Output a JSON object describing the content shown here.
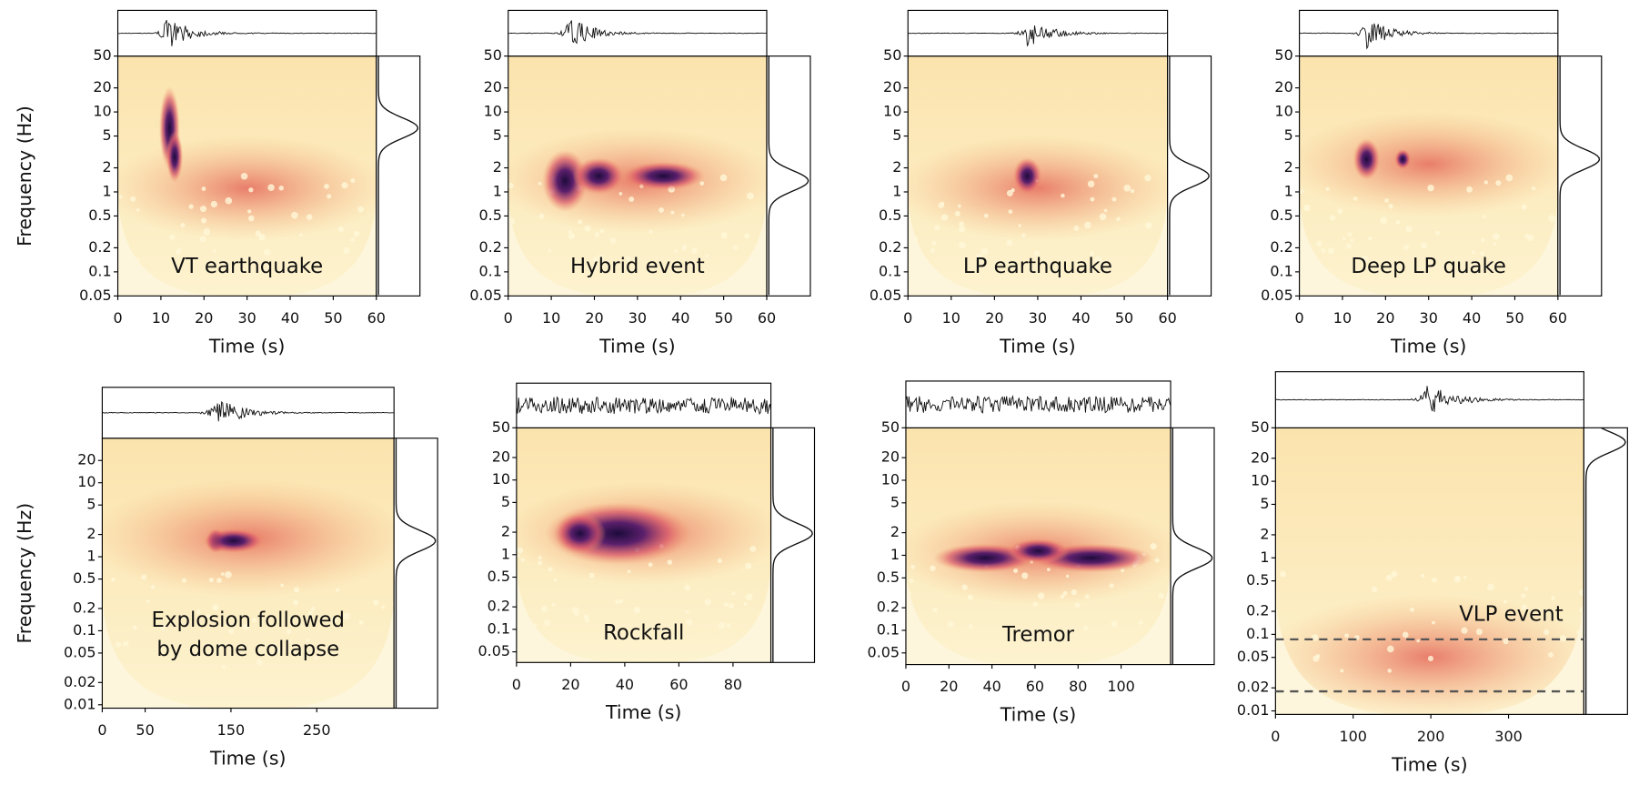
{
  "chart_data": [
    {
      "type": "spectrogram",
      "annotation": [
        "VT earthquake"
      ],
      "y_label": "Frequency (Hz)",
      "x_label": "Time (s)",
      "log_y": true,
      "xlim": [
        0,
        60
      ],
      "xticks": [
        0,
        10,
        20,
        30,
        40,
        50,
        60
      ],
      "ylim": [
        0.05,
        50
      ],
      "yticks": [
        50,
        20,
        10,
        5,
        2,
        1,
        0.5,
        0.2,
        0.1,
        0.05
      ]
    },
    {
      "type": "spectrogram",
      "annotation": [
        "Hybrid event"
      ],
      "x_label": "Time (s)",
      "log_y": true,
      "xlim": [
        0,
        60
      ],
      "xticks": [
        0,
        10,
        20,
        30,
        40,
        50,
        60
      ],
      "ylim": [
        0.05,
        50
      ],
      "yticks": [
        50,
        20,
        10,
        5,
        2,
        1,
        0.5,
        0.2,
        0.1,
        0.05
      ]
    },
    {
      "type": "spectrogram",
      "annotation": [
        "LP earthquake"
      ],
      "x_label": "Time (s)",
      "log_y": true,
      "xlim": [
        0,
        60
      ],
      "xticks": [
        0,
        10,
        20,
        30,
        40,
        50,
        60
      ],
      "ylim": [
        0.05,
        50
      ],
      "yticks": [
        50,
        20,
        10,
        5,
        2,
        1,
        0.5,
        0.2,
        0.1,
        0.05
      ]
    },
    {
      "type": "spectrogram",
      "annotation": [
        "Deep LP quake"
      ],
      "x_label": "Time (s)",
      "log_y": true,
      "xlim": [
        0,
        60
      ],
      "xticks": [
        0,
        10,
        20,
        30,
        40,
        50,
        60
      ],
      "ylim": [
        0.05,
        50
      ],
      "yticks": [
        50,
        20,
        10,
        5,
        2,
        1,
        0.5,
        0.2,
        0.1,
        0.05
      ]
    },
    {
      "type": "spectrogram",
      "annotation": [
        "Explosion followed",
        "by dome collapse"
      ],
      "y_label": "Frequency (Hz)",
      "x_label": "Time (s)",
      "log_y": true,
      "xlim": [
        0,
        340
      ],
      "xticks": [
        0,
        50,
        150,
        250
      ],
      "ylim": [
        0.009,
        40
      ],
      "yticks": [
        20,
        10,
        5,
        2,
        1,
        0.5,
        0.2,
        0.1,
        0.05,
        0.02,
        0.01
      ]
    },
    {
      "type": "spectrogram",
      "annotation": [
        "Rockfall"
      ],
      "x_label": "Time (s)",
      "log_y": true,
      "xlim": [
        0,
        94
      ],
      "xticks": [
        0,
        20,
        40,
        60,
        80
      ],
      "ylim": [
        0.036,
        50
      ],
      "yticks": [
        50,
        20,
        10,
        5,
        2,
        1,
        0.5,
        0.2,
        0.1,
        0.05
      ]
    },
    {
      "type": "spectrogram",
      "annotation": [
        "Tremor"
      ],
      "x_label": "Time (s)",
      "log_y": true,
      "xlim": [
        0,
        123
      ],
      "xticks": [
        0,
        20,
        40,
        60,
        80,
        100
      ],
      "ylim": [
        0.035,
        50
      ],
      "yticks": [
        50,
        20,
        10,
        5,
        2,
        1,
        0.5,
        0.2,
        0.1,
        0.05
      ]
    },
    {
      "type": "spectrogram",
      "annotation": [
        "VLP event"
      ],
      "x_label": "Time (s)",
      "log_y": true,
      "xlim": [
        0,
        397
      ],
      "xticks": [
        0,
        100,
        200,
        300
      ],
      "ylim": [
        0.009,
        50
      ],
      "yticks": [
        50,
        20,
        10,
        5,
        2,
        1,
        0.5,
        0.2,
        0.1,
        0.05,
        0.02,
        0.01
      ],
      "dashed_lines": [
        0.086,
        0.018
      ]
    }
  ]
}
